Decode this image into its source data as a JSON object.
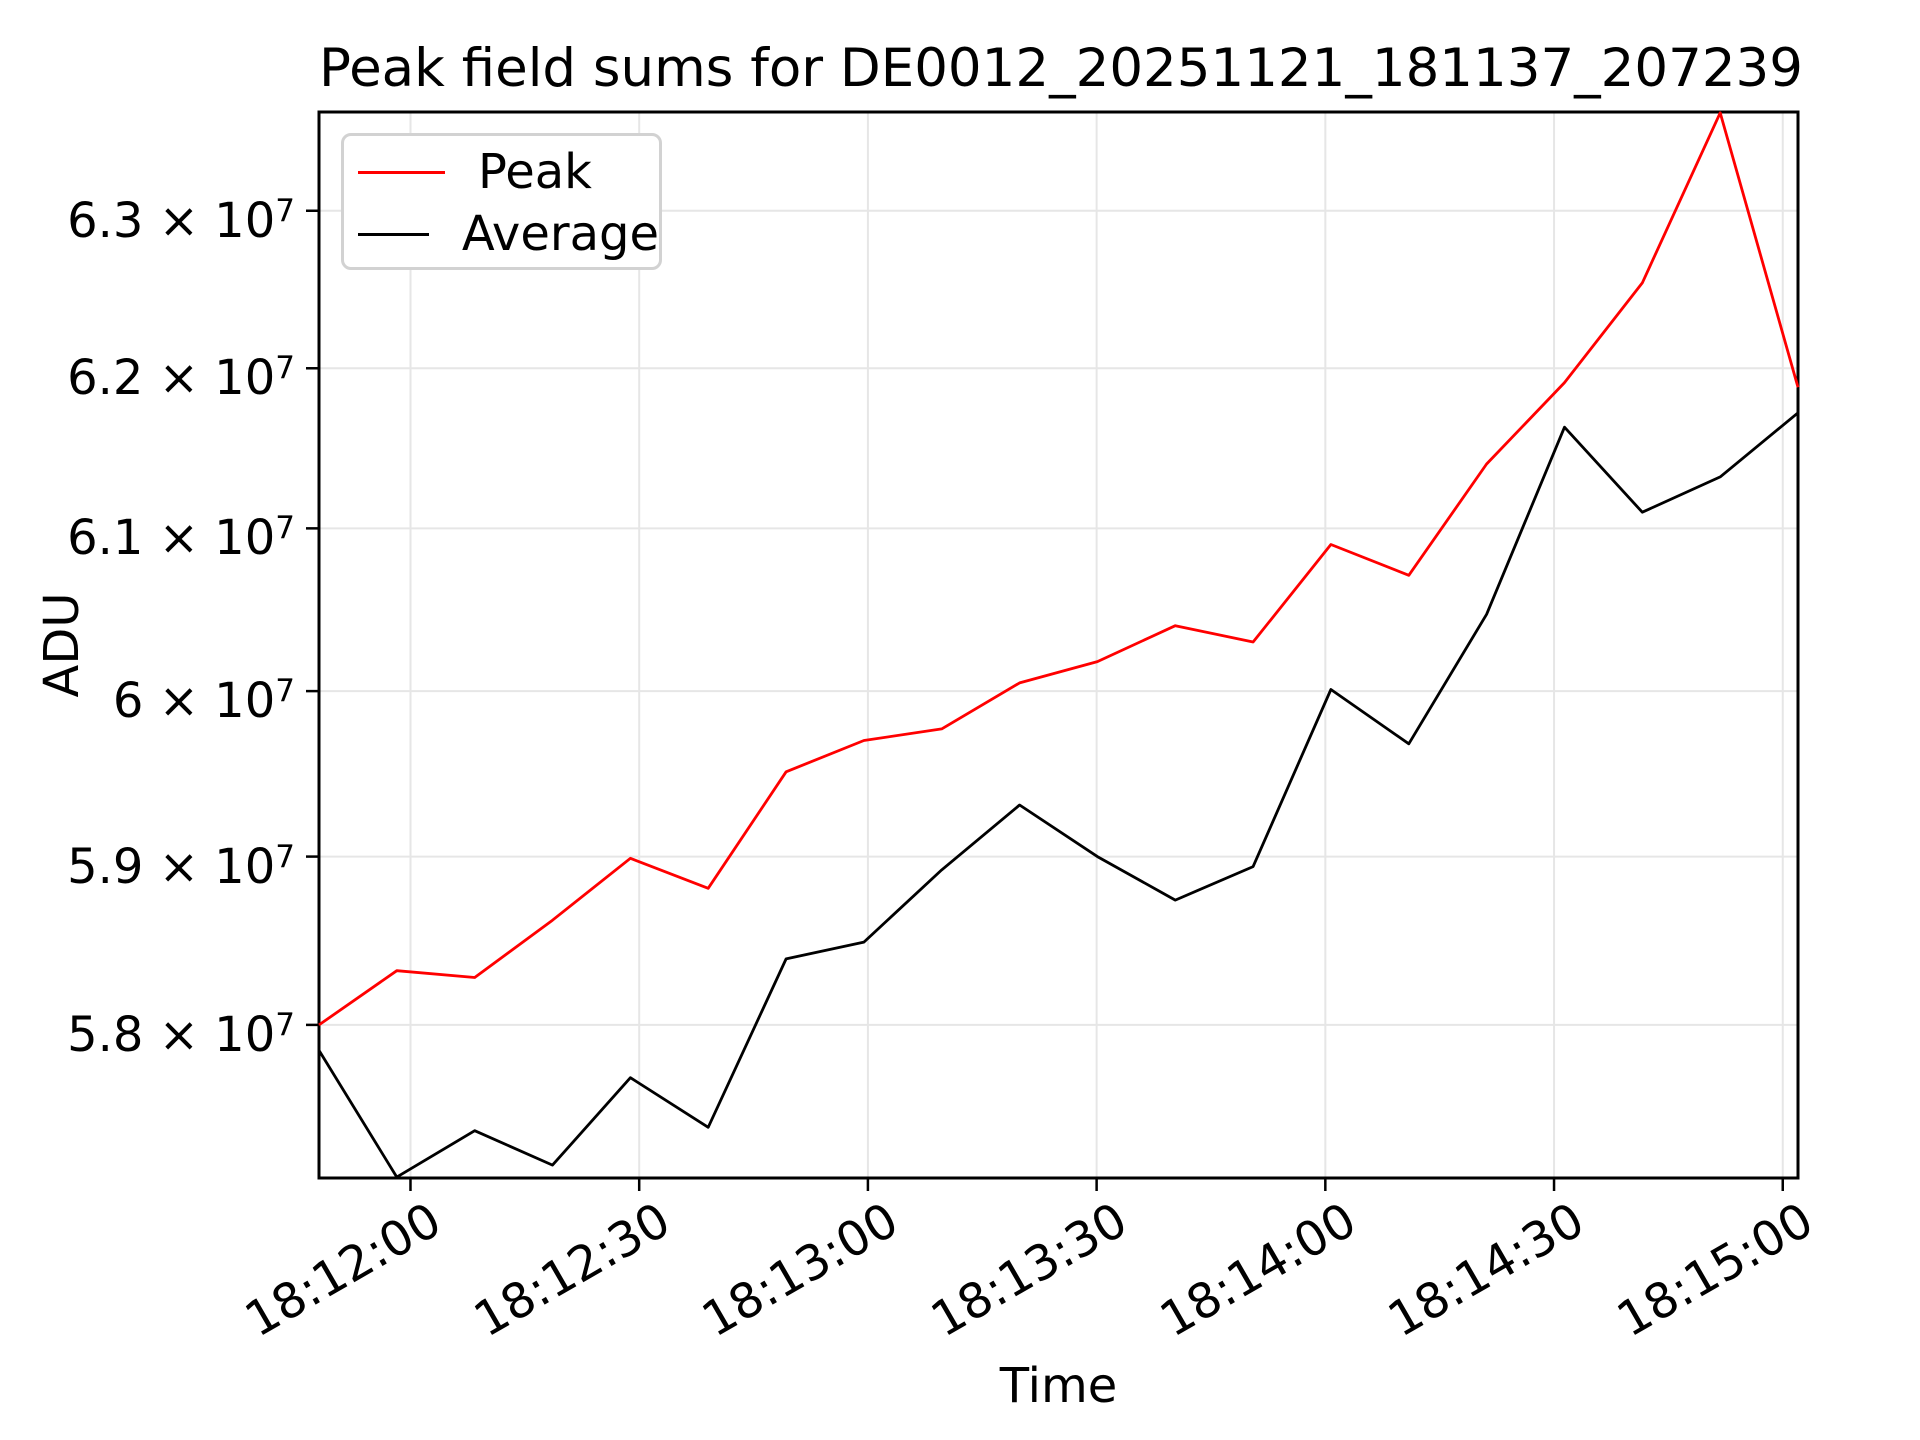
{
  "title": "Peak field sums for DE0012_20251121_181137_207239",
  "chart_data": {
    "type": "line",
    "title": "Peak field sums for DE0012_20251121_181137_207239",
    "xlabel": "Time",
    "ylabel": "ADU",
    "y_scale": "log",
    "grid": true,
    "background": "#ffffff",
    "gridline_color": "#e6e6e6",
    "x_axis": {
      "start_time": "18:11:48",
      "end_time": "18:15:02",
      "tick_labels": [
        "18:12:00",
        "18:12:30",
        "18:13:00",
        "18:13:30",
        "18:14:00",
        "18:14:30",
        "18:15:00"
      ],
      "tick_rotation_deg": 30
    },
    "y_axis": {
      "ylim": [
        57105000,
        63635000
      ],
      "ticks": [
        {
          "text": "6.3 × 10",
          "sup": "7",
          "value": 63000000
        },
        {
          "text": "6.2 × 10",
          "sup": "7",
          "value": 62000000
        },
        {
          "text": "6.1 × 10",
          "sup": "7",
          "value": 61000000
        },
        {
          "text": "6 × 10",
          "sup": "7",
          "value": 60000000
        },
        {
          "text": "5.9 × 10",
          "sup": "7",
          "value": 59000000
        },
        {
          "text": "5.8 × 10",
          "sup": "7",
          "value": 58000000
        }
      ]
    },
    "legend": {
      "position": "upper-left",
      "entries": [
        "Peak",
        "Average"
      ]
    },
    "series": [
      {
        "name": "Peak",
        "color": "#ff0000",
        "values": [
          58000000,
          58320000,
          58280000,
          58620000,
          58990000,
          58810000,
          59510000,
          59700000,
          59770000,
          60050000,
          60180000,
          60400000,
          60300000,
          60900000,
          60710000,
          61400000,
          61910000,
          62540000,
          63630000,
          61880000
        ]
      },
      {
        "name": "Average",
        "color": "#000000",
        "values": [
          57850000,
          57110000,
          57380000,
          57180000,
          57690000,
          57400000,
          58390000,
          58490000,
          58920000,
          59310000,
          59000000,
          58740000,
          58940000,
          60010000,
          59680000,
          60470000,
          61630000,
          61100000,
          61320000,
          61720000
        ]
      }
    ]
  }
}
